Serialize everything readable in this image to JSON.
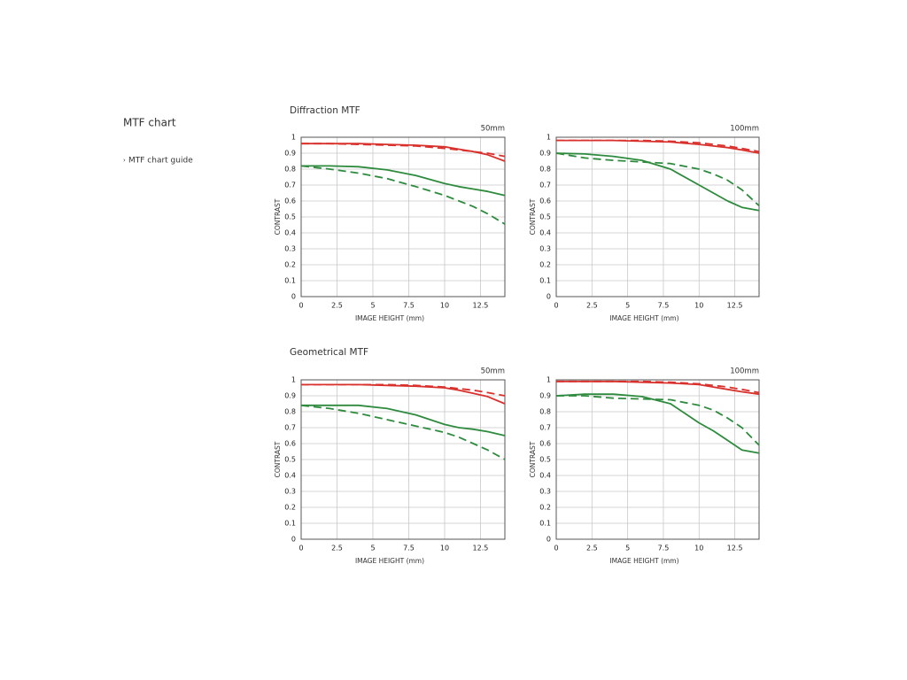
{
  "page": {
    "title": "MTF chart",
    "link": "MTF chart guide"
  },
  "sections": [
    "Diffraction MTF",
    "Geometrical MTF"
  ],
  "chart_data": [
    {
      "type": "line",
      "title": "50mm",
      "xlabel": "IMAGE HEIGHT (mm)",
      "ylabel": "CONTRAST",
      "x": [
        0,
        2,
        4,
        6,
        8,
        10,
        11,
        12,
        13,
        14.2
      ],
      "xlim": [
        0,
        14.2
      ],
      "xticks": [
        0,
        2.5,
        5,
        7.5,
        10,
        12.5
      ],
      "ylim": [
        0,
        1
      ],
      "yticks": [
        0,
        0.1,
        0.2,
        0.3,
        0.4,
        0.5,
        0.6,
        0.7,
        0.8,
        0.9,
        1
      ],
      "grid": true,
      "series": [
        {
          "color": "#d9302c",
          "style": "solid",
          "values": [
            0.96,
            0.96,
            0.96,
            0.955,
            0.95,
            0.94,
            0.925,
            0.91,
            0.89,
            0.85
          ]
        },
        {
          "color": "#d9302c",
          "style": "dashed",
          "values": [
            0.96,
            0.96,
            0.955,
            0.95,
            0.945,
            0.93,
            0.92,
            0.91,
            0.9,
            0.88
          ]
        },
        {
          "color": "#2e8b3e",
          "style": "solid",
          "values": [
            0.82,
            0.82,
            0.815,
            0.795,
            0.76,
            0.71,
            0.69,
            0.675,
            0.66,
            0.635
          ]
        },
        {
          "color": "#2e8b3e",
          "style": "dashed",
          "values": [
            0.82,
            0.8,
            0.775,
            0.74,
            0.69,
            0.635,
            0.6,
            0.565,
            0.52,
            0.455
          ]
        }
      ]
    },
    {
      "type": "line",
      "title": "100mm",
      "xlabel": "IMAGE HEIGHT (mm)",
      "ylabel": "CONTRAST",
      "x": [
        0,
        2,
        4,
        6,
        8,
        10,
        11,
        12,
        13,
        14.2
      ],
      "xlim": [
        0,
        14.2
      ],
      "xticks": [
        0,
        2.5,
        5,
        7.5,
        10,
        12.5
      ],
      "ylim": [
        0,
        1
      ],
      "yticks": [
        0,
        0.1,
        0.2,
        0.3,
        0.4,
        0.5,
        0.6,
        0.7,
        0.8,
        0.9,
        1
      ],
      "grid": true,
      "series": [
        {
          "color": "#d9302c",
          "style": "solid",
          "values": [
            0.98,
            0.98,
            0.98,
            0.975,
            0.97,
            0.955,
            0.945,
            0.935,
            0.92,
            0.9
          ]
        },
        {
          "color": "#d9302c",
          "style": "dashed",
          "values": [
            0.98,
            0.98,
            0.98,
            0.98,
            0.975,
            0.965,
            0.955,
            0.945,
            0.93,
            0.91
          ]
        },
        {
          "color": "#2e8b3e",
          "style": "solid",
          "values": [
            0.9,
            0.895,
            0.88,
            0.855,
            0.8,
            0.7,
            0.65,
            0.6,
            0.56,
            0.54
          ]
        },
        {
          "color": "#2e8b3e",
          "style": "dashed",
          "values": [
            0.9,
            0.87,
            0.855,
            0.845,
            0.835,
            0.8,
            0.77,
            0.73,
            0.67,
            0.57
          ]
        }
      ]
    },
    {
      "type": "line",
      "title": "50mm",
      "xlabel": "IMAGE HEIGHT (mm)",
      "ylabel": "CONTRAST",
      "x": [
        0,
        2,
        4,
        6,
        8,
        10,
        11,
        12,
        13,
        14.2
      ],
      "xlim": [
        0,
        14.2
      ],
      "xticks": [
        0,
        2.5,
        5,
        7.5,
        10,
        12.5
      ],
      "ylim": [
        0,
        1
      ],
      "yticks": [
        0,
        0.1,
        0.2,
        0.3,
        0.4,
        0.5,
        0.6,
        0.7,
        0.8,
        0.9,
        1
      ],
      "grid": true,
      "series": [
        {
          "color": "#d9302c",
          "style": "solid",
          "values": [
            0.97,
            0.97,
            0.97,
            0.965,
            0.96,
            0.95,
            0.935,
            0.915,
            0.895,
            0.85
          ]
        },
        {
          "color": "#d9302c",
          "style": "dashed",
          "values": [
            0.97,
            0.97,
            0.97,
            0.97,
            0.965,
            0.955,
            0.945,
            0.935,
            0.92,
            0.9
          ]
        },
        {
          "color": "#2e8b3e",
          "style": "solid",
          "values": [
            0.84,
            0.84,
            0.84,
            0.82,
            0.78,
            0.72,
            0.7,
            0.69,
            0.675,
            0.65
          ]
        },
        {
          "color": "#2e8b3e",
          "style": "dashed",
          "values": [
            0.84,
            0.82,
            0.79,
            0.75,
            0.71,
            0.67,
            0.64,
            0.6,
            0.56,
            0.5
          ]
        }
      ]
    },
    {
      "type": "line",
      "title": "100mm",
      "xlabel": "IMAGE HEIGHT (mm)",
      "ylabel": "CONTRAST",
      "x": [
        0,
        2,
        4,
        6,
        8,
        10,
        11,
        12,
        13,
        14.2
      ],
      "xlim": [
        0,
        14.2
      ],
      "xticks": [
        0,
        2.5,
        5,
        7.5,
        10,
        12.5
      ],
      "ylim": [
        0,
        1
      ],
      "yticks": [
        0,
        0.1,
        0.2,
        0.3,
        0.4,
        0.5,
        0.6,
        0.7,
        0.8,
        0.9,
        1
      ],
      "grid": true,
      "series": [
        {
          "color": "#d9302c",
          "style": "solid",
          "values": [
            0.99,
            0.99,
            0.99,
            0.985,
            0.98,
            0.97,
            0.955,
            0.94,
            0.925,
            0.91
          ]
        },
        {
          "color": "#d9302c",
          "style": "dashed",
          "values": [
            0.99,
            0.99,
            0.99,
            0.99,
            0.985,
            0.975,
            0.965,
            0.955,
            0.94,
            0.92
          ]
        },
        {
          "color": "#2e8b3e",
          "style": "solid",
          "values": [
            0.9,
            0.91,
            0.91,
            0.895,
            0.85,
            0.73,
            0.68,
            0.62,
            0.56,
            0.54
          ]
        },
        {
          "color": "#2e8b3e",
          "style": "dashed",
          "values": [
            0.9,
            0.9,
            0.885,
            0.88,
            0.875,
            0.84,
            0.81,
            0.76,
            0.7,
            0.59
          ]
        }
      ]
    }
  ]
}
